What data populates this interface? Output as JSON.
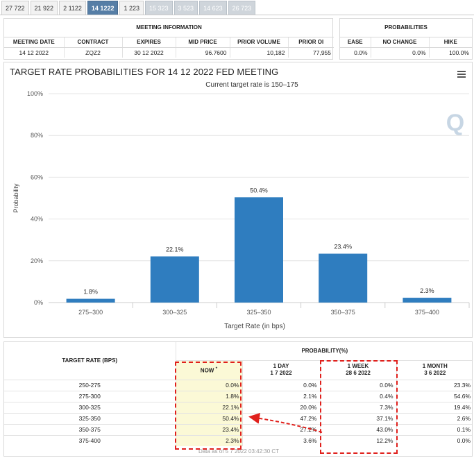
{
  "tabs": [
    {
      "label": "27 722",
      "state": "normal"
    },
    {
      "label": "21 922",
      "state": "normal"
    },
    {
      "label": "2 1122",
      "state": "normal"
    },
    {
      "label": "14 1222",
      "state": "active"
    },
    {
      "label": "1 223",
      "state": "normal"
    },
    {
      "label": "15 323",
      "state": "muted"
    },
    {
      "label": "3 523",
      "state": "muted"
    },
    {
      "label": "14 623",
      "state": "muted"
    },
    {
      "label": "26 723",
      "state": "muted"
    }
  ],
  "meeting_info": {
    "heading": "MEETING INFORMATION",
    "columns": [
      "MEETING DATE",
      "CONTRACT",
      "EXPIRES",
      "MID PRICE",
      "PRIOR VOLUME",
      "PRIOR OI"
    ],
    "values": [
      "14 12 2022",
      "ZQZ2",
      "30 12 2022",
      "96.7600",
      "10,182",
      "77,955"
    ]
  },
  "probabilities_info": {
    "heading": "PROBABILITIES",
    "columns": [
      "EASE",
      "NO CHANGE",
      "HIKE"
    ],
    "values": [
      "0.0%",
      "0.0%",
      "100.0%"
    ]
  },
  "chart": {
    "title": "TARGET RATE PROBABILITIES FOR 14 12 2022 FED MEETING",
    "subtitle": "Current target rate is 150–175",
    "watermark": "Q"
  },
  "chart_data": {
    "type": "bar",
    "title": "TARGET RATE PROBABILITIES FOR 14 12 2022 FED MEETING",
    "subtitle": "Current target rate is 150–175",
    "categories": [
      "275–300",
      "300–325",
      "325–350",
      "350–375",
      "375–400"
    ],
    "values": [
      1.8,
      22.1,
      50.4,
      23.4,
      2.3
    ],
    "data_labels": [
      "1.8%",
      "22.1%",
      "50.4%",
      "23.4%",
      "2.3%"
    ],
    "xlabel": "Target Rate (in bps)",
    "ylabel": "Probability",
    "ylim": [
      0,
      100
    ],
    "yticks": [
      "0%",
      "20%",
      "40%",
      "60%",
      "80%",
      "100%"
    ],
    "bar_color": "#2f7dbf",
    "grid": true,
    "legend": "none"
  },
  "prob_table": {
    "row_header": "TARGET RATE (BPS)",
    "group_header": "PROBABILITY(%)",
    "columns": [
      {
        "title": "NOW",
        "marker": "*",
        "date": ""
      },
      {
        "title": "1 DAY",
        "marker": "",
        "date": "1 7 2022"
      },
      {
        "title": "1 WEEK",
        "marker": "",
        "date": "28 6 2022"
      },
      {
        "title": "1 MONTH",
        "marker": "",
        "date": "3 6 2022"
      }
    ],
    "rows": [
      {
        "rate": "250-275",
        "now": "0.0%",
        "day": "0.0%",
        "week": "0.0%",
        "month": "23.3%"
      },
      {
        "rate": "275-300",
        "now": "1.8%",
        "day": "2.1%",
        "week": "0.4%",
        "month": "54.6%"
      },
      {
        "rate": "300-325",
        "now": "22.1%",
        "day": "20.0%",
        "week": "7.3%",
        "month": "19.4%"
      },
      {
        "rate": "325-350",
        "now": "50.4%",
        "day": "47.2%",
        "week": "37.1%",
        "month": "2.6%"
      },
      {
        "rate": "350-375",
        "now": "23.4%",
        "day": "27.2%",
        "week": "43.0%",
        "month": "0.1%"
      },
      {
        "rate": "375-400",
        "now": "2.3%",
        "day": "3.6%",
        "week": "12.2%",
        "month": "0.0%"
      }
    ],
    "footnote": "Data as of 5 7 2022 03:42:30 CT"
  },
  "annotation_color": "#e0201c"
}
